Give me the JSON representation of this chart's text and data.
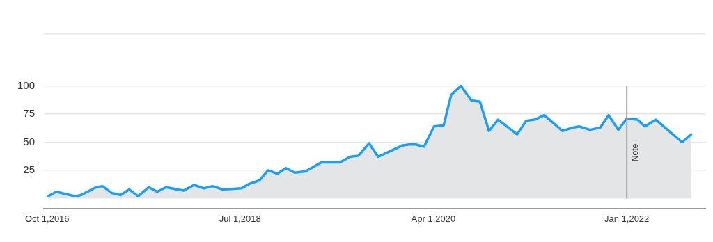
{
  "chart_data": {
    "type": "area",
    "x": [
      "2016-10-03",
      "2016-10-31",
      "2017-01-02",
      "2017-01-20",
      "2017-03-12",
      "2017-04-02",
      "2017-05-02",
      "2017-06-01",
      "2017-06-29",
      "2017-07-29",
      "2017-09-02",
      "2017-09-30",
      "2017-10-29",
      "2017-12-26",
      "2018-01-30",
      "2018-03-04",
      "2018-04-01",
      "2018-05-05",
      "2018-07-06",
      "2018-08-01",
      "2018-09-03",
      "2018-10-02",
      "2018-11-02",
      "2018-11-30",
      "2018-12-29",
      "2019-02-02",
      "2019-03-27",
      "2019-05-27",
      "2019-06-30",
      "2019-07-28",
      "2019-09-01",
      "2019-10-01",
      "2019-11-10",
      "2019-12-19",
      "2020-01-11",
      "2020-02-03",
      "2020-03-01",
      "2020-04-03",
      "2020-05-05",
      "2020-05-30",
      "2020-07-01",
      "2020-08-05",
      "2020-09-02",
      "2020-10-02",
      "2020-11-01",
      "2021-01-03",
      "2021-02-02",
      "2021-03-02",
      "2021-04-03",
      "2021-06-02",
      "2021-07-07",
      "2021-07-27",
      "2021-09-01",
      "2021-10-05",
      "2021-11-02",
      "2021-12-04",
      "2022-01-01",
      "2022-02-05",
      "2022-03-02",
      "2022-04-07",
      "2022-07-03",
      "2022-08-02"
    ],
    "series": [
      {
        "color": "#1a9ff5",
        "values": [
          2,
          6,
          2,
          3,
          10,
          11,
          5,
          3,
          8,
          2,
          10,
          6,
          10,
          7,
          12,
          9,
          11,
          8,
          9,
          13,
          16,
          25,
          22,
          27,
          23,
          24,
          32,
          32,
          37,
          38,
          49,
          37,
          42,
          47,
          48,
          48,
          46,
          64,
          65,
          92,
          100,
          87,
          86,
          60,
          70,
          57,
          69,
          70,
          74,
          60,
          63,
          64,
          61,
          63,
          74,
          61,
          71,
          70,
          64,
          70,
          50,
          57
        ]
      }
    ],
    "xlim": [
      "2016-09-20",
      "2022-09-18"
    ],
    "xticks": [
      {
        "value": "2016-10-01",
        "label": "Oct 1,2016"
      },
      {
        "value": "2018-07-01",
        "label": "Jul 1,2018"
      },
      {
        "value": "2020-04-01",
        "label": "Apr 1,2020"
      },
      {
        "value": "2022-01-01",
        "label": "Jan 1,2022"
      }
    ],
    "ylim": [
      -9,
      146
    ],
    "yticks": [
      25,
      50,
      75,
      100,
      {
        "value": 146,
        "label": null
      }
    ],
    "grid": "y",
    "ref_lines": [
      {
        "axis": "x",
        "value": "2022-01-01",
        "label": "Note",
        "color": "#a6a6a6"
      }
    ]
  }
}
